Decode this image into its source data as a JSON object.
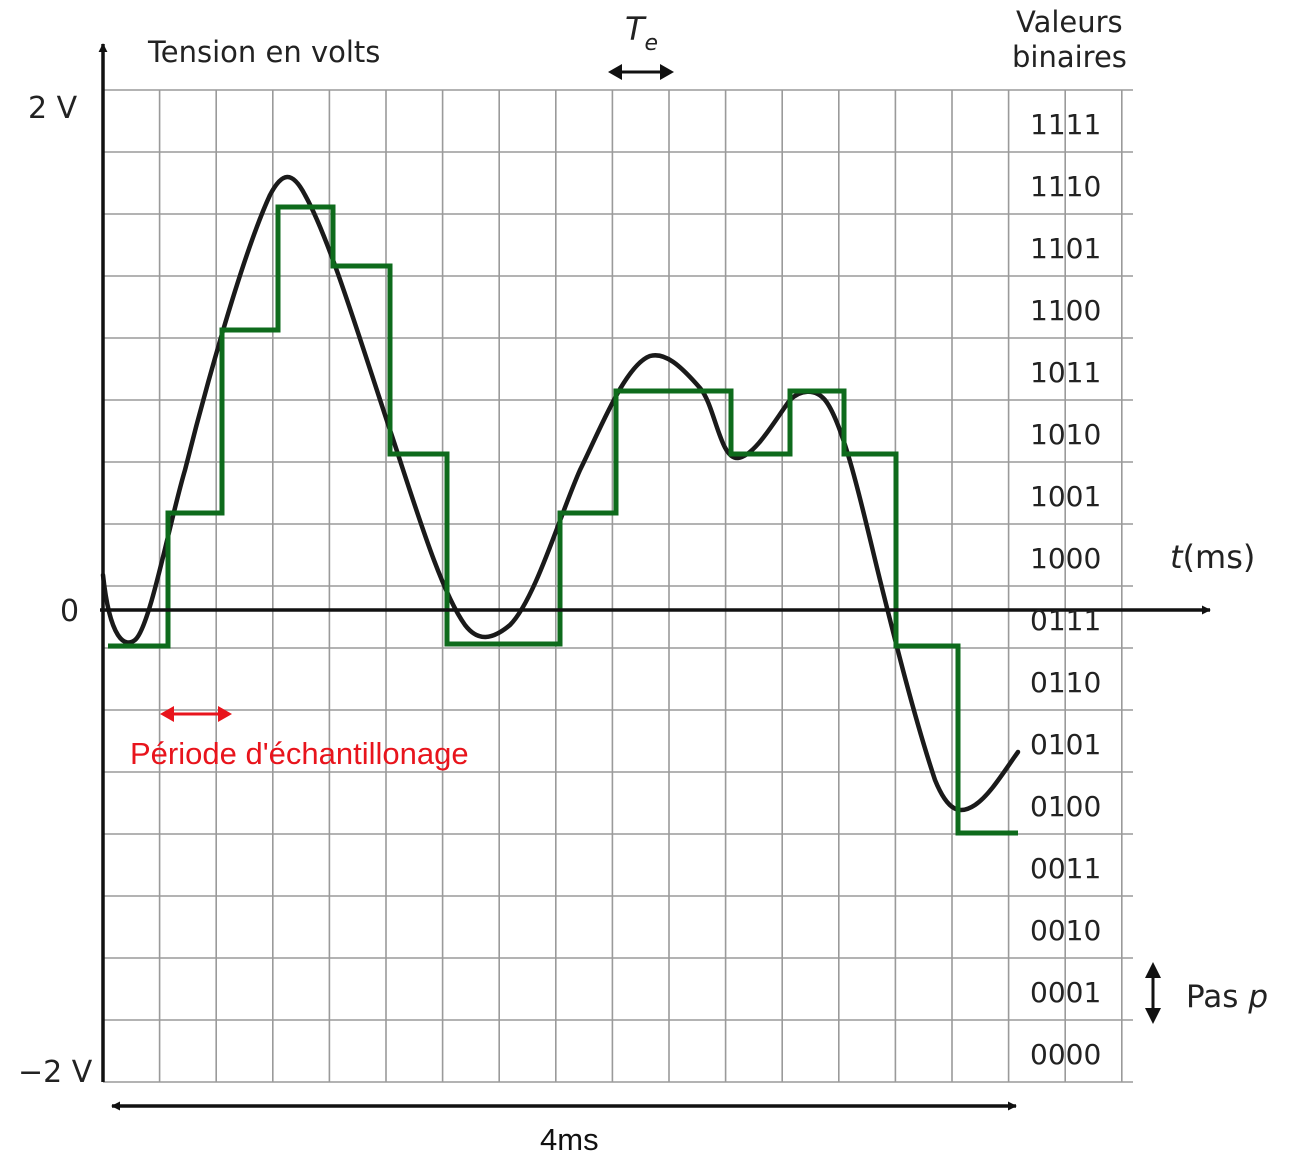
{
  "labels": {
    "y_axis": "Tension en volts",
    "x_axis_t": "t",
    "x_axis_unit": "(ms)",
    "y_max": "2 V",
    "y_zero": "0",
    "y_min": "−2 V",
    "te_T": "T",
    "te_sub": "e",
    "binary_header_1": "Valeurs",
    "binary_header_2": "binaires",
    "pas_text": "Pas ",
    "pas_var": "p",
    "sampling_period": "Période d'échantillonage",
    "duration": "4ms"
  },
  "binary_values": [
    "1111",
    "1110",
    "1101",
    "1100",
    "1011",
    "1010",
    "1001",
    "1000",
    "0111",
    "0110",
    "0101",
    "0100",
    "0011",
    "0010",
    "0001",
    "0000"
  ],
  "colors": {
    "grid": "#9a9a9a",
    "axis": "#111111",
    "signal": "#1a1a1a",
    "quantized": "#0e6b1c",
    "annotation": "#e8141c"
  }
}
